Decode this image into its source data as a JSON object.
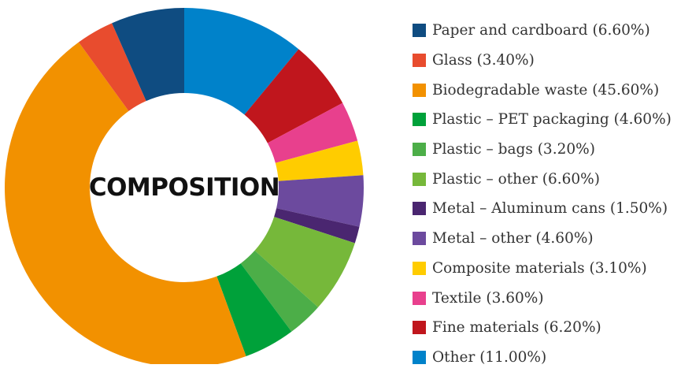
{
  "chart_data": {
    "type": "pie",
    "donut": true,
    "center_label": "COMPOSITION",
    "legend_position": "right",
    "slices": [
      {
        "label": "Other",
        "value": 11.0,
        "legend": "Other (11.00%)",
        "color": "#0082CA"
      },
      {
        "label": "Fine materials",
        "value": 6.2,
        "legend": "Fine materials (6.20%)",
        "color": "#C0161D"
      },
      {
        "label": "Textile",
        "value": 3.6,
        "legend": "Textile (3.60%)",
        "color": "#E8408D"
      },
      {
        "label": "Composite materials",
        "value": 3.1,
        "legend": "Composite materials (3.10%)",
        "color": "#FFCC00"
      },
      {
        "label": "Metal – other",
        "value": 4.6,
        "legend": "Metal – other (4.60%)",
        "color": "#6C4A9E"
      },
      {
        "label": "Metal – Aluminum cans",
        "value": 1.5,
        "legend": "Metal – Aluminum cans (1.50%)",
        "color": "#4A2670"
      },
      {
        "label": "Plastic – other",
        "value": 6.6,
        "legend": "Plastic – other (6.60%)",
        "color": "#76B83A"
      },
      {
        "label": "Plastic – bags",
        "value": 3.2,
        "legend": "Plastic – bags (3.20%)",
        "color": "#4CAE48"
      },
      {
        "label": "Plastic – PET packaging",
        "value": 4.6,
        "legend": "Plastic – PET packaging (4.60%)",
        "color": "#00A13A"
      },
      {
        "label": "Biodegradable waste",
        "value": 45.6,
        "legend": "Biodegradable waste (45.60%)",
        "color": "#F29100"
      },
      {
        "label": "Glass",
        "value": 3.4,
        "legend": "Glass (3.40%)",
        "color": "#E84C2E"
      },
      {
        "label": "Paper and cardboard",
        "value": 6.6,
        "legend": "Paper and cardboard (6.60%)",
        "color": "#0F4C81"
      }
    ],
    "legend_order": [
      "Paper and cardboard",
      "Glass",
      "Biodegradable waste",
      "Plastic – PET packaging",
      "Plastic – bags",
      "Plastic – other",
      "Metal – Aluminum cans",
      "Metal – other",
      "Composite materials",
      "Textile",
      "Fine materials",
      "Other"
    ]
  }
}
